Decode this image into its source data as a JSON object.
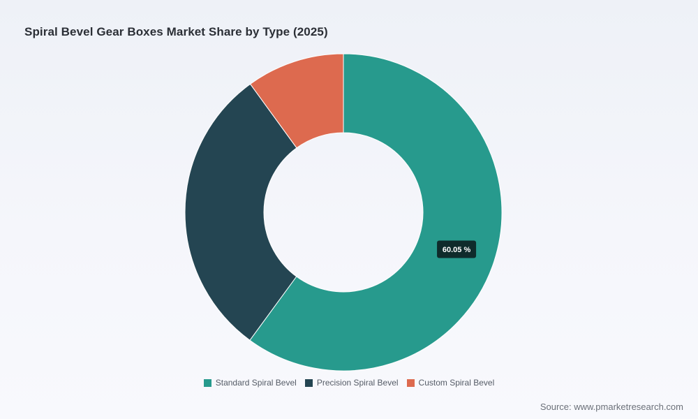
{
  "chart_data": {
    "type": "pie",
    "variant": "donut",
    "title": "Spiral Bevel Gear Boxes Market Share by Type (2025)",
    "categories": [
      "Standard Spiral Bevel",
      "Precision Spiral Bevel",
      "Custom Spiral Bevel"
    ],
    "values": [
      60.05,
      29.95,
      10.0
    ],
    "unit": "%",
    "colors": [
      "#279a8d",
      "#244552",
      "#dd6a4f"
    ],
    "data_labels": [
      {
        "category": "Standard Spiral Bevel",
        "text": "60.05 %"
      }
    ],
    "legend": "bottom"
  },
  "source": "Source: www.pmarketresearch.com"
}
